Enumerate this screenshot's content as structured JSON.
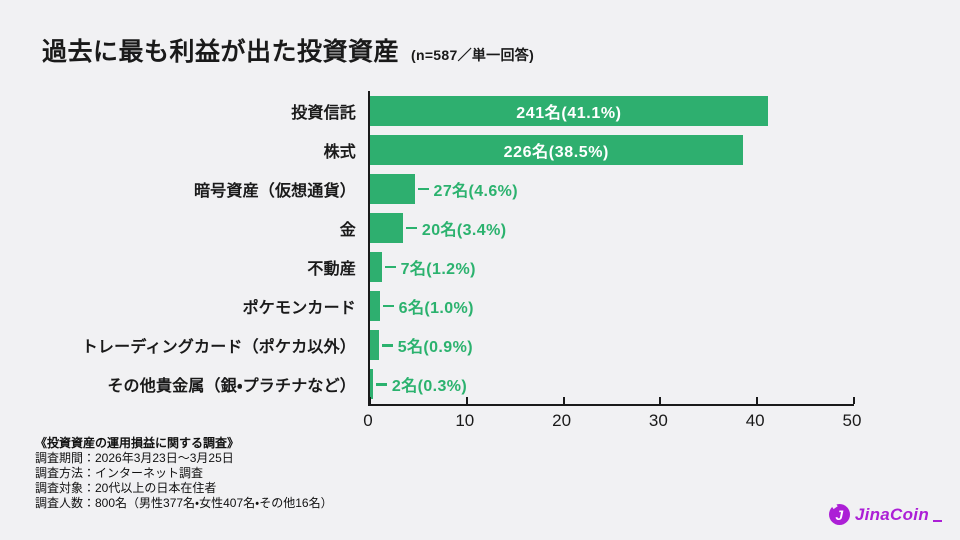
{
  "title": {
    "text": "過去に最も利益が出た投資資産",
    "suffix": "(n=587／単一回答)"
  },
  "chart_data": {
    "type": "bar",
    "orientation": "horizontal",
    "title": "過去に最も利益が出た投資資産",
    "sample_note": "n=587／単一回答",
    "categories": [
      "投資信託",
      "株式",
      "暗号資産（仮想通貨）",
      "金",
      "不動産",
      "ポケモンカード",
      "トレーディングカード（ポケカ以外）",
      "その他貴金属（銀・プラチナなど）"
    ],
    "counts": [
      241,
      226,
      27,
      20,
      7,
      6,
      5,
      2
    ],
    "percents": [
      41.1,
      38.5,
      4.6,
      3.4,
      1.2,
      1.0,
      0.9,
      0.3
    ],
    "bar_labels": [
      "241名(41.1%)",
      "226名(38.5%)",
      "27名(4.6%)",
      "20名(3.4%)",
      "7名(1.2%)",
      "6名(1.0%)",
      "5名(0.9%)",
      "2名(0.3%)"
    ],
    "xlim": [
      0,
      50
    ],
    "xticks": [
      0,
      10,
      20,
      30,
      40,
      50
    ],
    "bar_color": "#2EAF6F",
    "outside_label_color": "#2BB26E",
    "inside_label_color": "#FFFFFF",
    "inside_label_count": 2,
    "grid": false,
    "legend": false
  },
  "footnote": {
    "heading": "《投資資産の運用損益に関する調査》",
    "lines": [
      "調査期間：2026年3月23日～3月25日",
      "調査方法：インターネット調査",
      "調査対象：20代以上の日本在住者",
      "調査人数：800名（男性377名・女性407名・その他16名）"
    ]
  },
  "logo": {
    "text": "JinaCoin",
    "icon_letter": "J",
    "color": "#AC1FD6"
  }
}
